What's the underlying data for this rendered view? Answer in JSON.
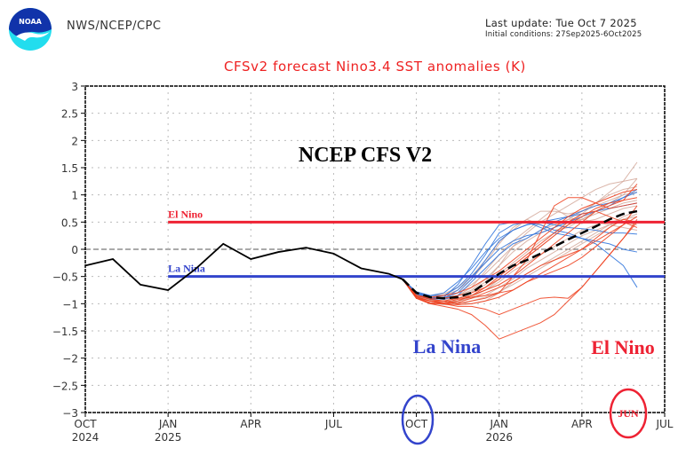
{
  "header": {
    "agency": "NWS/NCEP/CPC",
    "last_update": "Last update: Tue Oct  7 2025",
    "initial_conditions": "Initial conditions: 27Sep2025-6Oct2025",
    "logo_text": "NOAA"
  },
  "colors": {
    "title": "#ee2222",
    "el_nino": "#ee2233",
    "la_nina": "#3344cc",
    "observed": "#000000",
    "ensemble_red": "#ee4422",
    "ensemble_blue": "#3377dd",
    "ensemble_tan": "#d4a89a"
  },
  "chart_data": {
    "type": "line",
    "title": "CFSv2 forecast Nino3.4 SST anomalies (K)",
    "watermark": "NCEP CFS V2",
    "ylim": [
      -3,
      3
    ],
    "yticks": [
      3,
      2.5,
      2,
      1.5,
      1,
      0.5,
      0,
      -0.5,
      -1,
      -1.5,
      -2,
      -2.5,
      -3
    ],
    "ytick_labels": [
      "3",
      "2.5",
      "2",
      "1.5",
      "1",
      "0.5",
      "0",
      "−0.5",
      "−1",
      "−1.5",
      "−2",
      "−2.5",
      "−3"
    ],
    "xlim_months": [
      0,
      21
    ],
    "xticks": [
      {
        "month": 0,
        "label": "OCT",
        "year": "2024"
      },
      {
        "month": 3,
        "label": "JAN",
        "year": "2025"
      },
      {
        "month": 6,
        "label": "APR",
        "year": ""
      },
      {
        "month": 9,
        "label": "JUL",
        "year": ""
      },
      {
        "month": 12,
        "label": "OCT",
        "year": ""
      },
      {
        "month": 15,
        "label": "JAN",
        "year": "2026"
      },
      {
        "month": 18,
        "label": "APR",
        "year": ""
      },
      {
        "month": 21,
        "label": "JUL",
        "year": ""
      }
    ],
    "grid": true,
    "thresholds": [
      {
        "name": "El Nino",
        "value": 0.5,
        "start_month": 3,
        "end_month": 21
      },
      {
        "name": "La Nina",
        "value": -0.5,
        "start_month": 3,
        "end_month": 21
      }
    ],
    "observed": {
      "name": "Observed",
      "months": [
        0,
        1,
        2,
        3,
        4,
        5,
        6,
        7,
        8,
        9,
        10,
        11
      ],
      "values": [
        -0.3,
        -0.18,
        -0.65,
        -0.75,
        -0.36,
        0.1,
        -0.18,
        -0.05,
        0.03,
        -0.08,
        -0.35,
        -0.45
      ]
    },
    "ensemble_mean": {
      "name": "Ensemble mean",
      "months": [
        11.5,
        12,
        12.5,
        13,
        13.5,
        14,
        14.5,
        15,
        15.5,
        16,
        16.5,
        17,
        17.5,
        18,
        18.5,
        19,
        19.5,
        20
      ],
      "values": [
        -0.55,
        -0.8,
        -0.88,
        -0.9,
        -0.88,
        -0.8,
        -0.62,
        -0.45,
        -0.3,
        -0.2,
        -0.08,
        0.05,
        0.18,
        0.3,
        0.42,
        0.55,
        0.65,
        0.7
      ]
    },
    "ensemble_members": {
      "months": [
        11.5,
        12,
        12.5,
        13,
        13.5,
        14,
        14.5,
        15,
        15.5,
        16,
        16.5,
        17,
        17.5,
        18,
        18.5,
        19,
        19.5,
        20
      ],
      "series": [
        {
          "group": "blue",
          "values": [
            -0.55,
            -0.8,
            -0.85,
            -0.85,
            -0.7,
            -0.45,
            -0.1,
            0.3,
            0.45,
            0.5,
            0.4,
            0.3,
            0.25,
            0.2,
            0.15,
            0.1,
            0.0,
            -0.05
          ]
        },
        {
          "group": "blue",
          "values": [
            -0.55,
            -0.82,
            -0.9,
            -0.88,
            -0.65,
            -0.3,
            0.1,
            0.45,
            0.5,
            0.48,
            0.45,
            0.35,
            0.3,
            0.2,
            0.1,
            -0.1,
            -0.3,
            -0.7
          ]
        },
        {
          "group": "blue",
          "values": [
            -0.55,
            -0.78,
            -0.85,
            -0.8,
            -0.6,
            -0.35,
            -0.05,
            0.2,
            0.35,
            0.45,
            0.5,
            0.55,
            0.6,
            0.65,
            0.7,
            0.75,
            0.8,
            0.85
          ]
        },
        {
          "group": "blue",
          "values": [
            -0.55,
            -0.8,
            -0.88,
            -0.9,
            -0.75,
            -0.5,
            -0.25,
            0.0,
            0.15,
            0.25,
            0.3,
            0.4,
            0.5,
            0.6,
            0.7,
            0.8,
            0.95,
            1.05
          ]
        },
        {
          "group": "blue",
          "values": [
            -0.55,
            -0.85,
            -0.92,
            -0.9,
            -0.8,
            -0.55,
            -0.2,
            0.15,
            0.35,
            0.45,
            0.5,
            0.45,
            0.4,
            0.38,
            0.35,
            0.3,
            0.3,
            0.28
          ]
        },
        {
          "group": "blue",
          "values": [
            -0.55,
            -0.8,
            -0.9,
            -0.92,
            -0.85,
            -0.6,
            -0.35,
            -0.1,
            0.1,
            0.2,
            0.35,
            0.5,
            0.6,
            0.7,
            0.8,
            0.85,
            0.95,
            1.1
          ]
        },
        {
          "group": "red",
          "values": [
            -0.55,
            -0.9,
            -1.0,
            -1.05,
            -1.1,
            -1.2,
            -1.4,
            -1.65,
            -1.55,
            -1.45,
            -1.35,
            -1.2,
            -0.95,
            -0.7,
            -0.4,
            -0.1,
            0.2,
            0.5
          ]
        },
        {
          "group": "red",
          "values": [
            -0.55,
            -0.88,
            -0.95,
            -1.0,
            -1.05,
            -1.05,
            -1.1,
            -1.2,
            -1.1,
            -1.0,
            -0.9,
            -0.88,
            -0.9,
            -0.7,
            -0.4,
            -0.1,
            0.2,
            0.55
          ]
        },
        {
          "group": "red",
          "values": [
            -0.55,
            -0.85,
            -0.92,
            -0.95,
            -1.0,
            -0.95,
            -0.9,
            -0.8,
            -0.5,
            -0.2,
            0.3,
            0.8,
            0.95,
            0.95,
            0.85,
            0.75,
            0.8,
            0.85
          ]
        },
        {
          "group": "red",
          "values": [
            -0.55,
            -0.9,
            -0.95,
            -0.95,
            -0.9,
            -0.85,
            -0.75,
            -0.65,
            -0.5,
            -0.3,
            -0.1,
            0.1,
            0.3,
            0.5,
            0.7,
            0.8,
            0.9,
            1.2
          ]
        },
        {
          "group": "red",
          "values": [
            -0.55,
            -0.85,
            -0.9,
            -0.9,
            -0.85,
            -0.8,
            -0.7,
            -0.55,
            -0.35,
            -0.15,
            0.05,
            0.25,
            0.45,
            0.6,
            0.75,
            0.85,
            0.9,
            0.95
          ]
        },
        {
          "group": "red",
          "values": [
            -0.55,
            -0.87,
            -0.95,
            -1.0,
            -0.98,
            -0.9,
            -0.8,
            -0.7,
            -0.6,
            -0.45,
            -0.3,
            -0.2,
            -0.1,
            0.0,
            0.2,
            0.4,
            0.55,
            0.5
          ]
        },
        {
          "group": "red",
          "values": [
            -0.55,
            -0.9,
            -1.0,
            -1.0,
            -0.95,
            -0.85,
            -0.7,
            -0.5,
            -0.3,
            -0.1,
            0.1,
            0.3,
            0.5,
            0.65,
            0.7,
            0.6,
            0.5,
            0.4
          ]
        },
        {
          "group": "red",
          "values": [
            -0.55,
            -0.85,
            -0.88,
            -0.85,
            -0.8,
            -0.7,
            -0.55,
            -0.4,
            -0.2,
            0.0,
            0.2,
            0.4,
            0.6,
            0.75,
            0.85,
            0.95,
            1.05,
            1.1
          ]
        },
        {
          "group": "red",
          "values": [
            -0.55,
            -0.88,
            -0.95,
            -0.98,
            -0.92,
            -0.88,
            -0.85,
            -0.8,
            -0.75,
            -0.6,
            -0.45,
            -0.3,
            -0.15,
            0.0,
            0.15,
            0.3,
            0.45,
            0.6
          ]
        },
        {
          "group": "red",
          "values": [
            -0.55,
            -0.9,
            -0.98,
            -1.0,
            -1.02,
            -1.0,
            -0.95,
            -0.88,
            -0.75,
            -0.6,
            -0.5,
            -0.4,
            -0.3,
            -0.15,
            0.05,
            0.25,
            0.45,
            0.8
          ]
        },
        {
          "group": "tan",
          "values": [
            -0.55,
            -0.82,
            -0.88,
            -0.85,
            -0.75,
            -0.55,
            -0.25,
            0.1,
            0.4,
            0.55,
            0.45,
            0.35,
            0.4,
            0.55,
            0.7,
            0.85,
            1.0,
            1.3
          ]
        },
        {
          "group": "tan",
          "values": [
            -0.55,
            -0.85,
            -0.9,
            -0.92,
            -0.85,
            -0.7,
            -0.4,
            -0.1,
            0.15,
            0.35,
            0.55,
            0.75,
            0.6,
            0.5,
            0.55,
            0.65,
            0.75,
            0.8
          ]
        },
        {
          "group": "tan",
          "values": [
            -0.55,
            -0.88,
            -0.95,
            -0.98,
            -0.95,
            -0.88,
            -0.75,
            -0.55,
            -0.35,
            -0.15,
            0.05,
            0.25,
            0.45,
            0.65,
            0.85,
            1.05,
            1.25,
            1.6
          ]
        },
        {
          "group": "tan",
          "values": [
            -0.55,
            -0.8,
            -0.85,
            -0.85,
            -0.8,
            -0.65,
            -0.45,
            -0.2,
            0.05,
            0.2,
            0.35,
            0.45,
            0.55,
            0.55,
            0.5,
            0.45,
            0.4,
            0.35
          ]
        },
        {
          "group": "tan",
          "values": [
            -0.55,
            -0.87,
            -0.93,
            -0.95,
            -0.9,
            -0.8,
            -0.65,
            -0.45,
            -0.25,
            -0.05,
            0.15,
            0.3,
            0.45,
            0.55,
            0.65,
            0.75,
            0.85,
            0.9
          ]
        },
        {
          "group": "tan",
          "values": [
            -0.55,
            -0.85,
            -0.92,
            -0.95,
            -0.98,
            -1.0,
            -0.95,
            -0.8,
            -0.6,
            -0.45,
            -0.3,
            -0.15,
            0.0,
            0.15,
            0.3,
            0.45,
            0.6,
            0.7
          ]
        },
        {
          "group": "tan",
          "values": [
            -0.55,
            -0.83,
            -0.88,
            -0.88,
            -0.85,
            -0.78,
            -0.6,
            -0.3,
            0.05,
            0.3,
            0.5,
            0.65,
            0.8,
            0.95,
            1.1,
            1.2,
            1.25,
            1.3
          ]
        },
        {
          "group": "tan",
          "values": [
            -0.55,
            -0.86,
            -0.9,
            -0.92,
            -0.9,
            -0.85,
            -0.75,
            -0.6,
            -0.4,
            -0.25,
            -0.1,
            0.05,
            0.2,
            0.35,
            0.45,
            0.5,
            0.55,
            0.6
          ]
        },
        {
          "group": "tan",
          "values": [
            -0.55,
            -0.84,
            -0.9,
            -0.9,
            -0.85,
            -0.75,
            -0.55,
            -0.3,
            -0.05,
            0.15,
            0.3,
            0.4,
            0.55,
            0.7,
            0.85,
            1.0,
            1.1,
            1.15
          ]
        },
        {
          "group": "tan",
          "values": [
            -0.55,
            -0.88,
            -0.95,
            -0.95,
            -0.95,
            -0.9,
            -0.85,
            -0.7,
            -0.55,
            -0.35,
            -0.2,
            -0.05,
            0.1,
            0.25,
            0.35,
            0.45,
            0.5,
            0.45
          ]
        },
        {
          "group": "tan",
          "values": [
            -0.55,
            -0.82,
            -0.85,
            -0.82,
            -0.7,
            -0.5,
            -0.2,
            0.15,
            0.35,
            0.55,
            0.7,
            0.7,
            0.65,
            0.7,
            0.8,
            0.9,
            1.0,
            1.05
          ]
        },
        {
          "group": "tan",
          "values": [
            -0.55,
            -0.9,
            -0.98,
            -1.02,
            -1.0,
            -0.95,
            -0.88,
            -0.78,
            -0.65,
            -0.5,
            -0.35,
            -0.2,
            -0.05,
            0.1,
            0.25,
            0.4,
            0.55,
            0.65
          ]
        }
      ]
    },
    "annotations": [
      {
        "text": "El Nino",
        "kind": "threshold-label",
        "color": "el_nino"
      },
      {
        "text": "La Nina",
        "kind": "threshold-label",
        "color": "la_nina"
      },
      {
        "text": "La Nina",
        "kind": "big-label",
        "color": "la_nina"
      },
      {
        "text": "El Nino",
        "kind": "big-label",
        "color": "el_nino"
      },
      {
        "text": "JUN",
        "kind": "circled-month",
        "color": "el_nino"
      },
      {
        "text": "OCT",
        "kind": "circled-tick",
        "color": "la_nina"
      }
    ]
  }
}
